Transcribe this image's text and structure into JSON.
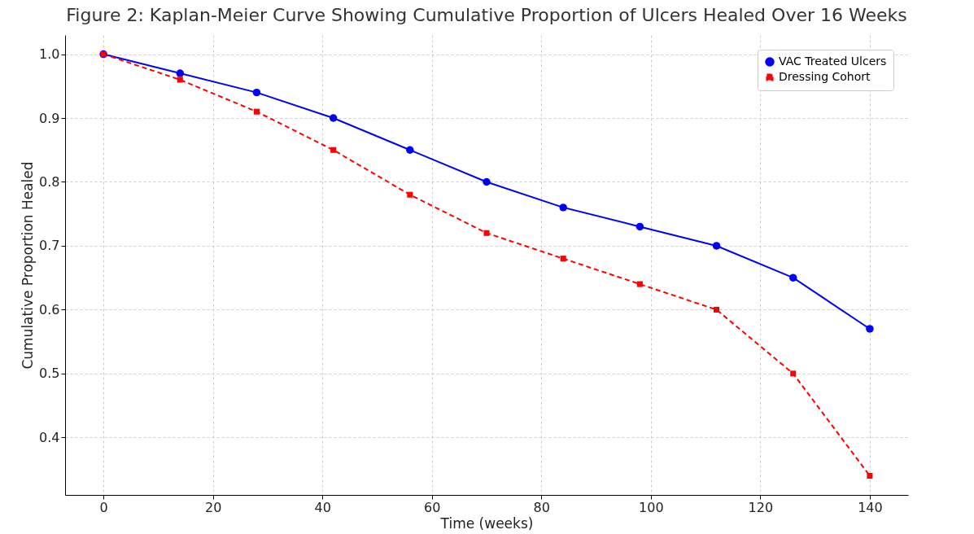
{
  "chart_data": {
    "type": "line",
    "title": "Figure 2: Kaplan-Meier Curve Showing Cumulative Proportion of Ulcers Healed Over 16 Weeks",
    "xlabel": "Time (weeks)",
    "ylabel": "Cumulative Proportion Healed",
    "x": [
      0,
      14,
      28,
      42,
      56,
      70,
      84,
      98,
      112,
      126,
      140
    ],
    "series": [
      {
        "name": "VAC Treated Ulcers",
        "color": "#0000ff",
        "marker": "circle",
        "line_style": "solid",
        "values": [
          1.0,
          0.97,
          0.94,
          0.9,
          0.85,
          0.8,
          0.76,
          0.73,
          0.7,
          0.65,
          0.57
        ]
      },
      {
        "name": "Dressing Cohort",
        "color": "#ff0000",
        "marker": "square",
        "line_style": "dashed",
        "values": [
          1.0,
          0.96,
          0.91,
          0.85,
          0.78,
          0.72,
          0.68,
          0.64,
          0.6,
          0.5,
          0.34
        ]
      }
    ],
    "xlim": [
      -7,
      147
    ],
    "xticks": [
      0,
      20,
      40,
      60,
      80,
      100,
      120,
      140
    ],
    "ylim": [
      0.31,
      1.03
    ],
    "yticks": [
      0.4,
      0.5,
      0.6,
      0.7,
      0.8,
      0.9,
      {
        "value": 1,
        "label": "1.0"
      }
    ],
    "grid": true,
    "legend": "top right"
  }
}
